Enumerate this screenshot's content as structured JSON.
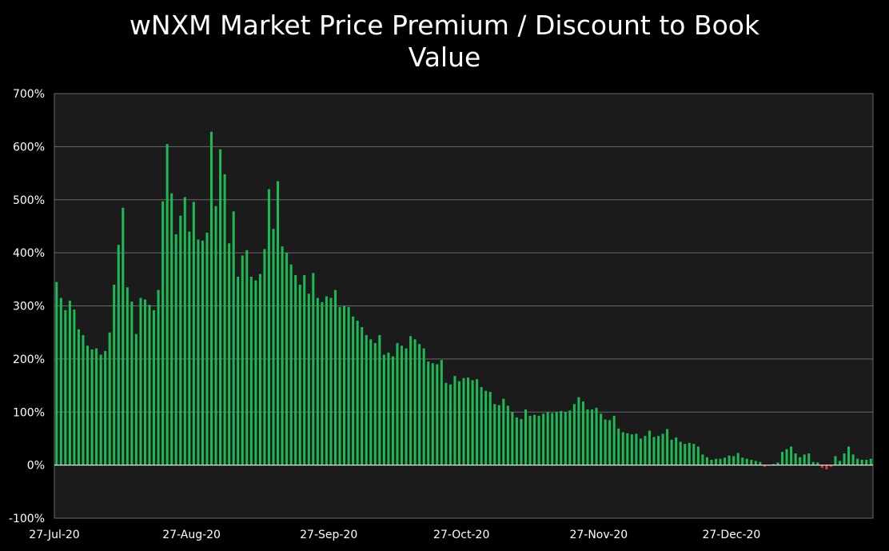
{
  "chart_data": {
    "type": "bar",
    "title": "wNXM Market Price Premium / Discount to Book Value",
    "title_lines": [
      "wNXM Market Price Premium / Discount to Book",
      "Value"
    ],
    "xlabel": "",
    "ylabel": "",
    "ylim": [
      -100,
      700
    ],
    "y_ticks": [
      -100,
      0,
      100,
      200,
      300,
      400,
      500,
      600,
      700
    ],
    "y_tick_suffix": "%",
    "x_tick_labels": [
      "27-Jul-20",
      "27-Aug-20",
      "27-Sep-20",
      "27-Oct-20",
      "27-Nov-20",
      "27-Dec-20"
    ],
    "x_tick_index": [
      0,
      31,
      62,
      92,
      123,
      153
    ],
    "x_start": "27-Jul-20",
    "x_end": "22-Jan-21",
    "grid": true,
    "legend": "none",
    "colors": {
      "positive": "#1db954",
      "negative": "#e23a2e",
      "plot_bg": "#1b1b1b",
      "grid": "#6a6a6a",
      "background": "#000000"
    },
    "values": [
      345,
      315,
      292,
      310,
      293,
      256,
      245,
      225,
      218,
      220,
      208,
      215,
      250,
      340,
      415,
      485,
      335,
      308,
      247,
      315,
      312,
      302,
      292,
      330,
      497,
      605,
      512,
      435,
      470,
      505,
      440,
      496,
      425,
      423,
      438,
      628,
      488,
      595,
      548,
      418,
      478,
      355,
      395,
      405,
      355,
      348,
      360,
      407,
      520,
      445,
      535,
      412,
      400,
      378,
      358,
      340,
      358,
      323,
      362,
      315,
      307,
      318,
      315,
      330,
      298,
      300,
      298,
      280,
      272,
      260,
      245,
      237,
      230,
      245,
      208,
      212,
      205,
      230,
      225,
      220,
      243,
      237,
      228,
      220,
      195,
      192,
      190,
      198,
      155,
      152,
      168,
      158,
      164,
      165,
      160,
      162,
      147,
      140,
      138,
      115,
      113,
      125,
      112,
      100,
      90,
      87,
      105,
      93,
      95,
      93,
      97,
      100,
      98,
      100,
      102,
      100,
      103,
      115,
      128,
      120,
      105,
      105,
      108,
      97,
      86,
      85,
      93,
      69,
      62,
      60,
      58,
      59,
      50,
      55,
      65,
      53,
      55,
      59,
      68,
      48,
      52,
      44,
      40,
      42,
      40,
      35,
      20,
      15,
      10,
      12,
      12,
      14,
      18,
      17,
      23,
      14,
      12,
      10,
      8,
      6,
      -3,
      -1,
      2,
      5,
      25,
      30,
      35,
      22,
      15,
      20,
      22,
      6,
      5,
      -5,
      -8,
      -3,
      17,
      8,
      22,
      35,
      20,
      12,
      10,
      10,
      12
    ]
  }
}
